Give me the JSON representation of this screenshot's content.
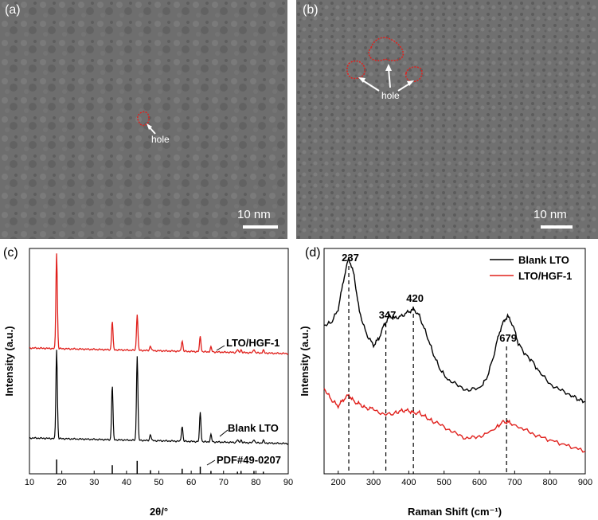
{
  "panels": {
    "a": {
      "label": "(a)",
      "scale": "10 nm",
      "annotation": "hole"
    },
    "b": {
      "label": "(b)",
      "scale": "10 nm",
      "annotation": "hole"
    },
    "c": {
      "label": "(c)"
    },
    "d": {
      "label": "(d)"
    }
  },
  "colors": {
    "red": "#e0201c",
    "black": "#000000",
    "tem_bg": "#6d6d6d"
  },
  "chart_data": [
    {
      "type": "line",
      "panel": "c",
      "xlabel": "2θ/°",
      "ylabel": "Intensity (a.u.)",
      "xlim": [
        10,
        90
      ],
      "xticks": [
        10,
        20,
        30,
        40,
        50,
        60,
        70,
        80,
        90
      ],
      "series": [
        {
          "name": "LTO/HGF-1",
          "color": "#e0201c",
          "peaks": [
            [
              18.4,
              1.0
            ],
            [
              35.6,
              0.3
            ],
            [
              43.3,
              0.38
            ],
            [
              47.4,
              0.05
            ],
            [
              57.2,
              0.11
            ],
            [
              62.8,
              0.16
            ],
            [
              66.1,
              0.05
            ],
            [
              74.3,
              0.03
            ],
            [
              75.4,
              0.03
            ],
            [
              79.4,
              0.04
            ],
            [
              82.3,
              0.03
            ]
          ]
        },
        {
          "name": "Blank LTO",
          "color": "#000000",
          "peaks": [
            [
              18.4,
              1.0
            ],
            [
              35.6,
              0.61
            ],
            [
              43.3,
              0.95
            ],
            [
              47.4,
              0.07
            ],
            [
              57.2,
              0.17
            ],
            [
              62.8,
              0.33
            ],
            [
              66.1,
              0.08
            ],
            [
              74.3,
              0.03
            ],
            [
              75.4,
              0.03
            ],
            [
              79.4,
              0.04
            ],
            [
              82.3,
              0.03
            ]
          ]
        }
      ],
      "reference": {
        "name": "PDF#49-0207",
        "lines": [
          [
            18.4,
            1.0
          ],
          [
            35.6,
            0.6
          ],
          [
            43.3,
            0.9
          ],
          [
            47.4,
            0.25
          ],
          [
            57.2,
            0.35
          ],
          [
            62.8,
            0.5
          ],
          [
            66.1,
            0.2
          ],
          [
            74.3,
            0.15
          ],
          [
            75.4,
            0.2
          ],
          [
            79.4,
            0.2
          ],
          [
            82.3,
            0.15
          ]
        ]
      }
    },
    {
      "type": "line",
      "panel": "d",
      "xlabel": "Raman Shift (cm⁻¹)",
      "ylabel": "Intensity (a.u.)",
      "xlim": [
        160,
        900
      ],
      "xticks": [
        200,
        300,
        400,
        500,
        600,
        700,
        800,
        900
      ],
      "series": [
        {
          "name": "Blank LTO",
          "color": "#000000",
          "x": [
            160,
            180,
            200,
            215,
            230,
            245,
            260,
            280,
            300,
            315,
            330,
            345,
            360,
            380,
            400,
            415,
            430,
            450,
            470,
            490,
            510,
            540,
            570,
            600,
            620,
            640,
            655,
            670,
            680,
            695,
            710,
            730,
            750,
            770,
            800,
            830,
            860,
            880,
            900
          ],
          "y": [
            0.66,
            0.67,
            0.73,
            0.86,
            0.96,
            0.88,
            0.72,
            0.62,
            0.57,
            0.6,
            0.66,
            0.7,
            0.69,
            0.7,
            0.72,
            0.73,
            0.7,
            0.62,
            0.53,
            0.46,
            0.42,
            0.39,
            0.37,
            0.38,
            0.42,
            0.52,
            0.62,
            0.68,
            0.7,
            0.66,
            0.58,
            0.53,
            0.5,
            0.45,
            0.4,
            0.37,
            0.35,
            0.33,
            0.32
          ]
        },
        {
          "name": "LTO/HGF-1",
          "color": "#e0201c",
          "x": [
            160,
            180,
            200,
            215,
            230,
            245,
            260,
            280,
            300,
            330,
            360,
            380,
            400,
            415,
            430,
            450,
            470,
            500,
            530,
            560,
            590,
            620,
            645,
            665,
            680,
            695,
            720,
            750,
            780,
            820,
            860,
            900
          ],
          "y": [
            0.38,
            0.33,
            0.3,
            0.33,
            0.35,
            0.32,
            0.31,
            0.29,
            0.29,
            0.26,
            0.27,
            0.28,
            0.28,
            0.27,
            0.27,
            0.25,
            0.23,
            0.21,
            0.18,
            0.16,
            0.16,
            0.18,
            0.2,
            0.23,
            0.23,
            0.22,
            0.2,
            0.18,
            0.16,
            0.14,
            0.12,
            0.1
          ]
        }
      ],
      "peak_labels": [
        {
          "text": "237",
          "x": 230
        },
        {
          "text": "347",
          "x": 335
        },
        {
          "text": "420",
          "x": 413
        },
        {
          "text": "679",
          "x": 677
        }
      ]
    }
  ]
}
